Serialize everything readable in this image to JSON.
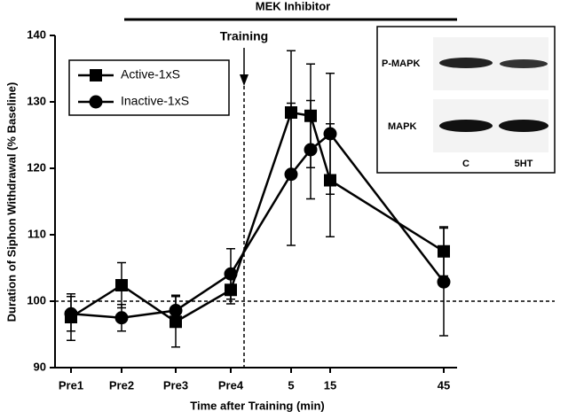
{
  "chart_data": {
    "type": "line",
    "y_label": "Duration of Siphon Withdrawal (% Baseline)",
    "x_label": "Time after Training (min)",
    "treatment_label": "MEK Inhibitor",
    "event_label": "Training",
    "categories": [
      "Pre1",
      "Pre2",
      "Pre3",
      "Pre4",
      "5",
      null,
      "15",
      "45"
    ],
    "series": [
      {
        "name": "Active-1xS",
        "color": "#000000",
        "marker": "square",
        "values": [
          97.6,
          102.4,
          96.9,
          101.7,
          128.4,
          127.9,
          118.2,
          107.5
        ],
        "errors": [
          3.5,
          3.4,
          3.8,
          2.1,
          9.3,
          7.8,
          8.5,
          3.7
        ]
      },
      {
        "name": "Inactive-1xS",
        "color": "#000000",
        "marker": "circle",
        "values": [
          98.1,
          97.5,
          98.6,
          104.1,
          119.1,
          122.8,
          125.2,
          102.9
        ],
        "errors": [
          2.6,
          2.0,
          2.3,
          3.8,
          10.7,
          7.4,
          9.1,
          8.1
        ]
      }
    ],
    "ylim": [
      90,
      140
    ],
    "yticks": [
      90,
      100,
      110,
      120,
      130,
      140
    ],
    "reference_y": 100,
    "legend": "upper-left"
  },
  "inset": {
    "row_labels": [
      "P-MAPK",
      "MAPK"
    ],
    "column_labels": [
      "C",
      "5HT"
    ]
  }
}
